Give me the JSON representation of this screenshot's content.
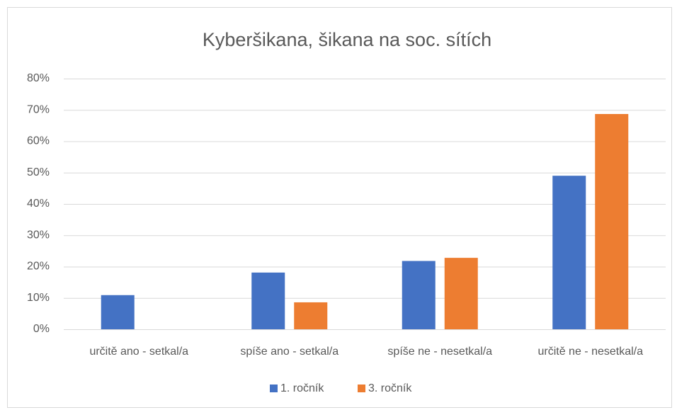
{
  "chart_data": {
    "type": "bar",
    "title": "Kyberšikana, šikana na soc. sítích",
    "categories": [
      "určitě ano - setkal/a",
      "spíše ano - setkal/a",
      "spíše ne - nesetkal/a",
      "určitě ne - nesetkal/a"
    ],
    "series": [
      {
        "name": "1. ročník",
        "color": "#4472c4",
        "values": [
          10.9,
          18.1,
          21.8,
          49.0
        ]
      },
      {
        "name": "3. ročník",
        "color": "#ed7d31",
        "values": [
          0,
          8.6,
          22.8,
          68.7
        ]
      }
    ],
    "ylim": [
      0,
      80
    ],
    "yticks": [
      {
        "value": 0,
        "label": "0%"
      },
      {
        "value": 10,
        "label": "10%"
      },
      {
        "value": 20,
        "label": "20%"
      },
      {
        "value": 30,
        "label": "30%"
      },
      {
        "value": 40,
        "label": "40%"
      },
      {
        "value": 50,
        "label": "50%"
      },
      {
        "value": 60,
        "label": "60%"
      },
      {
        "value": 70,
        "label": "70%"
      },
      {
        "value": 80,
        "label": "80%"
      }
    ],
    "grid": true,
    "legend": "bottom"
  }
}
